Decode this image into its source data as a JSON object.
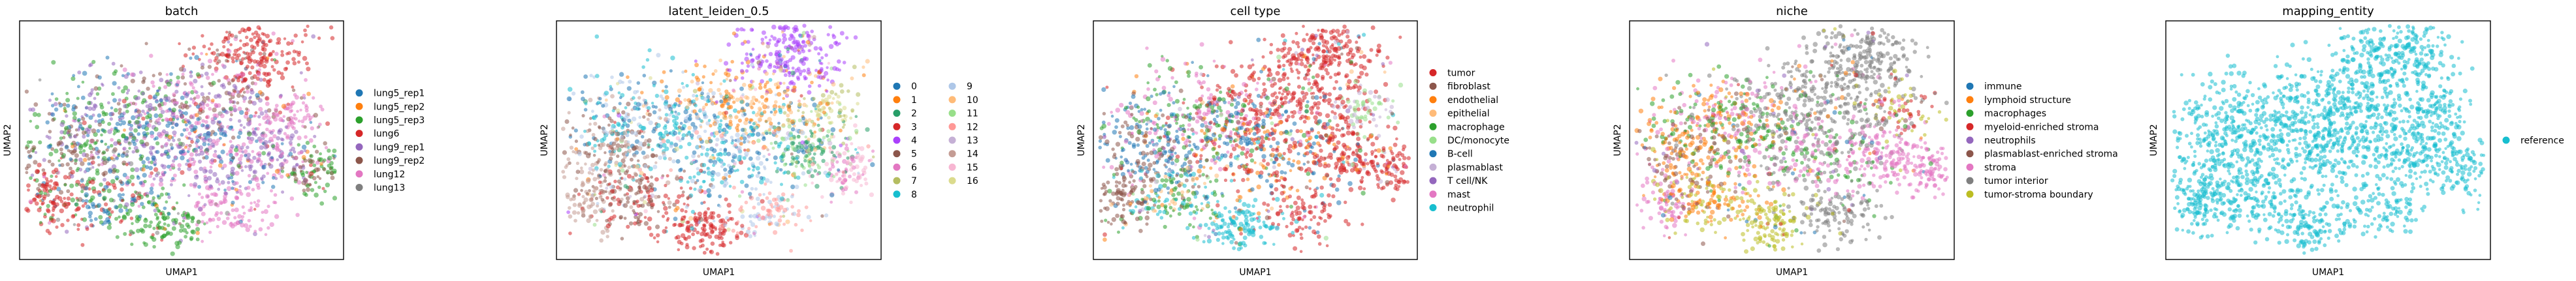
{
  "chart_data": [
    {
      "type": "scatter",
      "title": "batch",
      "xlabel": "UMAP1",
      "ylabel": "UMAP2",
      "legend": "right",
      "grid": false,
      "palette": "tab10",
      "series": [
        {
          "name": "lung5_rep1",
          "color": "#1f77b4"
        },
        {
          "name": "lung5_rep2",
          "color": "#ff7f0e"
        },
        {
          "name": "lung5_rep3",
          "color": "#2ca02c"
        },
        {
          "name": "lung6",
          "color": "#d62728"
        },
        {
          "name": "lung9_rep1",
          "color": "#9467bd"
        },
        {
          "name": "lung9_rep2",
          "color": "#8c564b"
        },
        {
          "name": "lung12",
          "color": "#e377c2"
        },
        {
          "name": "lung13",
          "color": "#7f7f7f"
        }
      ]
    },
    {
      "type": "scatter",
      "title": "latent_leiden_0.5",
      "xlabel": "UMAP1",
      "ylabel": "UMAP2",
      "legend": "right",
      "legend_columns": 2,
      "grid": false,
      "palette": "tab20",
      "series": [
        {
          "name": "0",
          "color": "#1f77b4"
        },
        {
          "name": "1",
          "color": "#ff7f0e"
        },
        {
          "name": "2",
          "color": "#279e68"
        },
        {
          "name": "3",
          "color": "#d62728"
        },
        {
          "name": "4",
          "color": "#aa40fc"
        },
        {
          "name": "5",
          "color": "#8c564b"
        },
        {
          "name": "6",
          "color": "#e377c2"
        },
        {
          "name": "7",
          "color": "#b5bd61"
        },
        {
          "name": "8",
          "color": "#17becf"
        },
        {
          "name": "9",
          "color": "#aec7e8"
        },
        {
          "name": "10",
          "color": "#ffbb78"
        },
        {
          "name": "11",
          "color": "#98df8a"
        },
        {
          "name": "12",
          "color": "#ff9896"
        },
        {
          "name": "13",
          "color": "#c5b0d5"
        },
        {
          "name": "14",
          "color": "#c49c94"
        },
        {
          "name": "15",
          "color": "#f7b6d2"
        },
        {
          "name": "16",
          "color": "#dbdb8d"
        }
      ]
    },
    {
      "type": "scatter",
      "title": "cell type",
      "xlabel": "UMAP1",
      "ylabel": "UMAP2",
      "legend": "right",
      "grid": false,
      "series": [
        {
          "name": "tumor",
          "color": "#d62728"
        },
        {
          "name": "fibroblast",
          "color": "#8c564b"
        },
        {
          "name": "endothelial",
          "color": "#ff7f0e"
        },
        {
          "name": "epithelial",
          "color": "#ffbb78"
        },
        {
          "name": "macrophage",
          "color": "#2ca02c"
        },
        {
          "name": "DC/monocyte",
          "color": "#98df8a"
        },
        {
          "name": "B-cell",
          "color": "#1f77b4"
        },
        {
          "name": "plasmablast",
          "color": "#c5b0d5"
        },
        {
          "name": "T cell/NK",
          "color": "#9467bd"
        },
        {
          "name": "mast",
          "color": "#e377c2"
        },
        {
          "name": "neutrophil",
          "color": "#17becf"
        }
      ]
    },
    {
      "type": "scatter",
      "title": "niche",
      "xlabel": "UMAP1",
      "ylabel": "UMAP2",
      "legend": "right",
      "grid": false,
      "palette": "tab10",
      "series": [
        {
          "name": "immune",
          "color": "#1f77b4"
        },
        {
          "name": "lymphoid structure",
          "color": "#ff7f0e"
        },
        {
          "name": "macrophages",
          "color": "#2ca02c"
        },
        {
          "name": "myeloid-enriched stroma",
          "color": "#d62728"
        },
        {
          "name": "neutrophils",
          "color": "#9467bd"
        },
        {
          "name": "plasmablast-enriched stroma",
          "color": "#8c564b"
        },
        {
          "name": "stroma",
          "color": "#e377c2"
        },
        {
          "name": "tumor interior",
          "color": "#7f7f7f"
        },
        {
          "name": "tumor-stroma boundary",
          "color": "#bcbd22"
        }
      ]
    },
    {
      "type": "scatter",
      "title": "mapping_entity",
      "xlabel": "UMAP1",
      "ylabel": "UMAP2",
      "legend": "right",
      "grid": false,
      "series": [
        {
          "name": "reference",
          "color": "#17becf"
        }
      ]
    }
  ]
}
